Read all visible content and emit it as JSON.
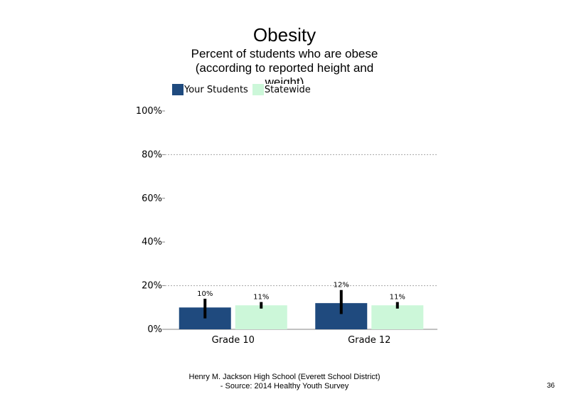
{
  "chart_data": {
    "type": "bar",
    "title": "Obesity",
    "subtitle": "Percent of students who are obese (according to reported height and weight)",
    "categories": [
      "Grade 10",
      "Grade 12"
    ],
    "series": [
      {
        "name": "Your Students",
        "values": [
          10,
          12
        ],
        "labels": [
          "10%",
          "12%"
        ],
        "error_low": [
          5,
          7
        ],
        "error_high": [
          14,
          18
        ]
      },
      {
        "name": "Statewide",
        "values": [
          11,
          11
        ],
        "labels": [
          "11%",
          "11%"
        ],
        "error_low": [
          9.5,
          9.5
        ],
        "error_high": [
          12.5,
          12.5
        ]
      }
    ],
    "yticks": [
      "0%",
      "20%",
      "40%",
      "60%",
      "80%",
      "100%"
    ],
    "ylim": [
      0,
      100
    ],
    "gridlines": [
      20,
      80
    ],
    "legend_position": "top",
    "colors": {
      "your_students": "#1f4a7e",
      "statewide": "#ccf7d9"
    }
  },
  "footer": {
    "line1": "Henry M. Jackson High School (Everett School District)",
    "line2": "- Source: 2014 Healthy Youth Survey"
  },
  "page_number": "36"
}
